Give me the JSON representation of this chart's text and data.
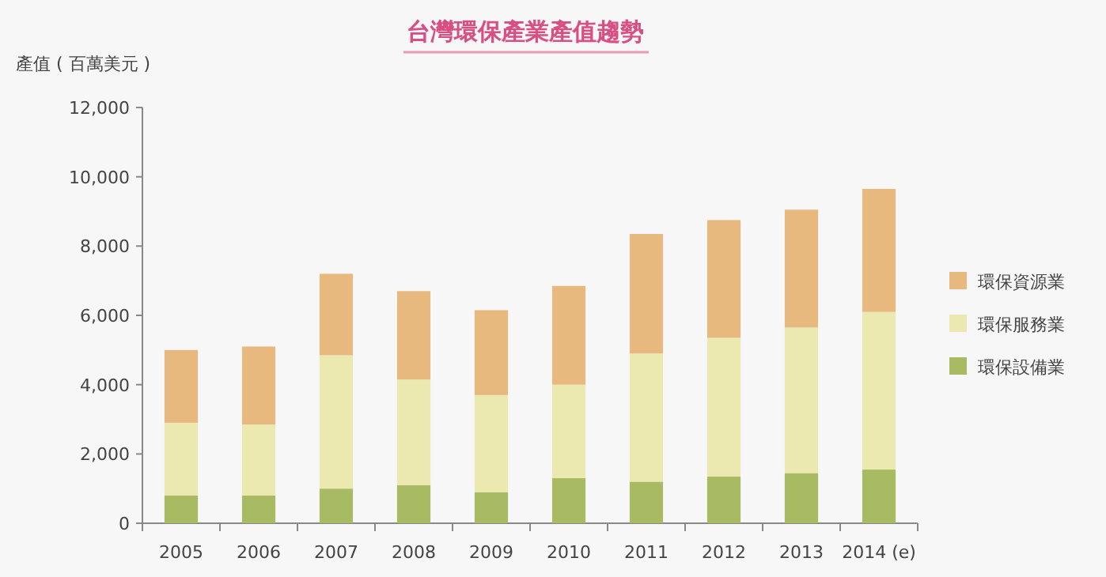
{
  "chart_data": {
    "type": "bar",
    "title": "台灣環保產業產值趨勢",
    "ylabel": "產值 ( 百萬美元 )",
    "stacked": true,
    "legend": "right",
    "categories": [
      "2005",
      "2006",
      "2007",
      "2008",
      "2009",
      "2010",
      "2011",
      "2012",
      "2013",
      "2014 (e)"
    ],
    "series": [
      {
        "name": "環保設備業",
        "color": "#a9bb62",
        "values": [
          800,
          800,
          1000,
          1100,
          900,
          1300,
          1200,
          1350,
          1450,
          1550
        ]
      },
      {
        "name": "環保服務業",
        "color": "#ebe8b0",
        "values": [
          2100,
          2050,
          3850,
          3050,
          2800,
          2700,
          3700,
          4000,
          4200,
          4550
        ]
      },
      {
        "name": "環保資源業",
        "color": "#e8b97e",
        "values": [
          2100,
          2250,
          2350,
          2550,
          2450,
          2850,
          3450,
          3400,
          3400,
          3550
        ]
      }
    ],
    "ylim": [
      0,
      12000
    ],
    "yticks": [
      0,
      {
        "value": 2000,
        "label": "2,000"
      },
      {
        "value": 4000,
        "label": "4,000"
      },
      {
        "value": 6000,
        "label": "6,000"
      },
      {
        "value": 8000,
        "label": "8,000"
      },
      {
        "value": 10000,
        "label": "10,000"
      },
      {
        "value": 12000,
        "label": "12,000"
      }
    ]
  }
}
